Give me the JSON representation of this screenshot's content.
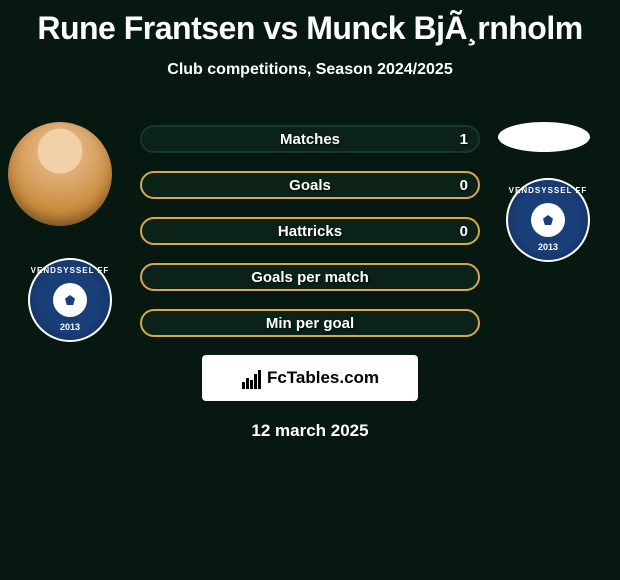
{
  "title": "Rune Frantsen vs Munck BjÃ¸rnholm",
  "subtitle": "Club competitions, Season 2024/2025",
  "date": "12 march 2025",
  "fctables_label": "FcTables.com",
  "club_name": "VENDSYSSEL FF",
  "club_year": "2013",
  "colors": {
    "background": "#071810",
    "bar_fill": "#0a2218",
    "bar_border_accent": "#d5a84a",
    "bar_border_teal": "#123a2e",
    "text": "#ffffff",
    "badge_primary": "#1a3e78"
  },
  "stats": [
    {
      "label": "Matches",
      "right_value": "1",
      "left_value": "",
      "border": "#123a2e"
    },
    {
      "label": "Goals",
      "right_value": "0",
      "left_value": "",
      "border": "#d5a84a"
    },
    {
      "label": "Hattricks",
      "right_value": "0",
      "left_value": "",
      "border": "#d5a84a"
    },
    {
      "label": "Goals per match",
      "right_value": "",
      "left_value": "",
      "border": "#d5a84a"
    },
    {
      "label": "Min per goal",
      "right_value": "",
      "left_value": "",
      "border": "#d5a84a"
    }
  ]
}
